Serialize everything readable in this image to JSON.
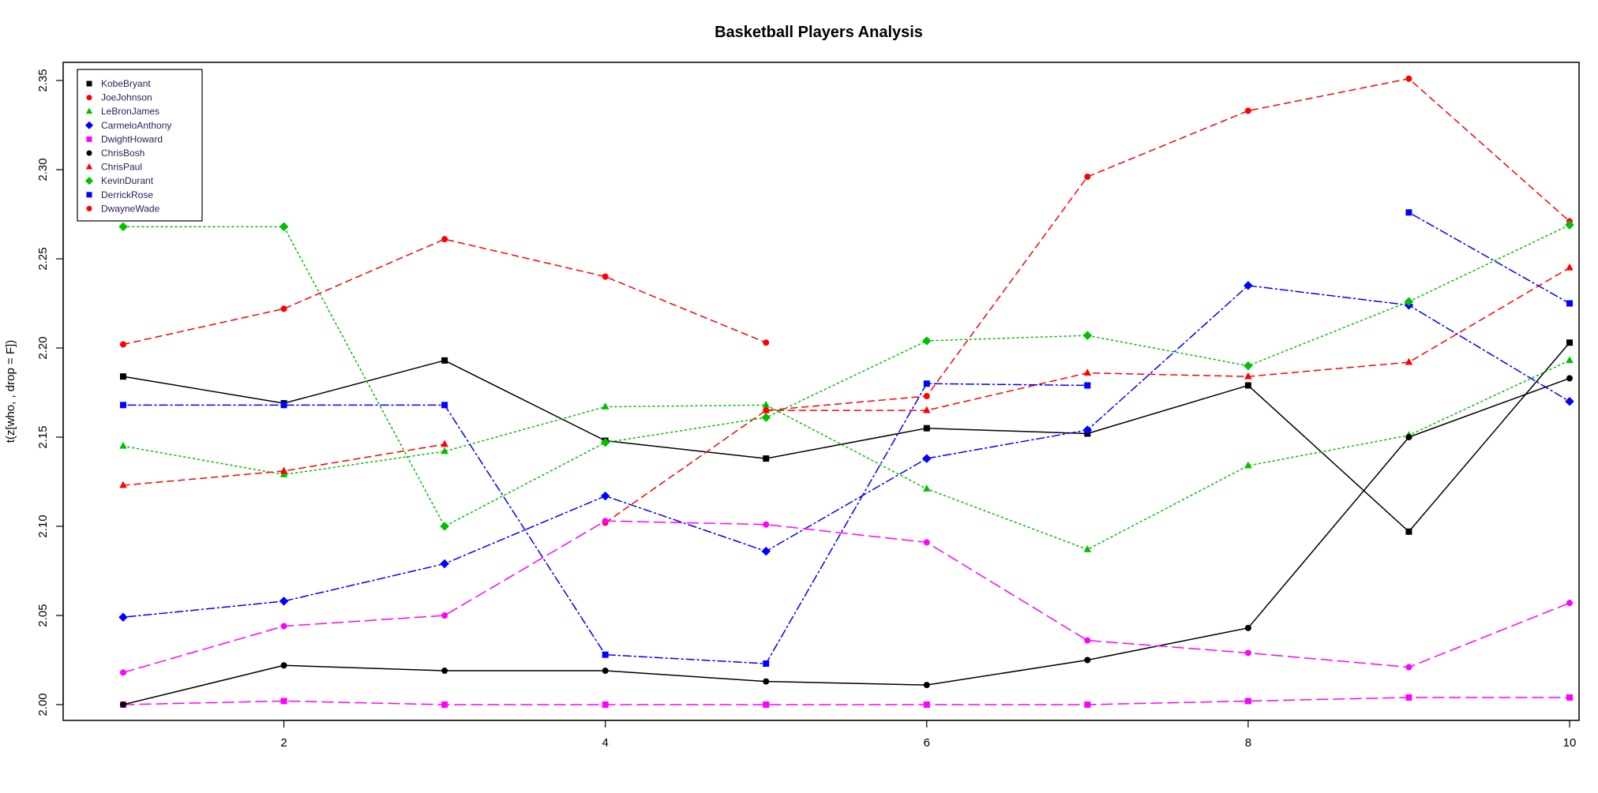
{
  "chart_data": {
    "type": "line",
    "title": "Basketball Players Analysis",
    "xlabel": "",
    "ylabel": "t(z[who, , drop = F])",
    "xlim": [
      1,
      10
    ],
    "ylim": [
      2.0,
      2.35
    ],
    "x_ticks": [
      2,
      4,
      6,
      8,
      10
    ],
    "y_ticks": [
      2.0,
      2.05,
      2.1,
      2.15,
      2.2,
      2.25,
      2.3,
      2.35
    ],
    "x_tick_labels": [
      "2",
      "4",
      "6",
      "8",
      "10"
    ],
    "y_tick_labels": [
      "2.00",
      "2.05",
      "2.10",
      "2.15",
      "2.20",
      "2.25",
      "2.30",
      "2.35"
    ],
    "grid": false,
    "legend_position": "top-left",
    "x": [
      1,
      2,
      3,
      4,
      5,
      6,
      7,
      8,
      9,
      10
    ],
    "series": [
      {
        "name": "KobeBryant",
        "color": "#000000",
        "line_style": "solid",
        "marker": "square",
        "values": [
          2.184,
          2.169,
          2.193,
          2.148,
          2.138,
          2.155,
          2.152,
          2.179,
          2.097,
          2.203
        ]
      },
      {
        "name": "JoeJohnson",
        "color": "#ff0000",
        "line_style": "dashed",
        "marker": "circle",
        "values": [
          null,
          null,
          null,
          2.102,
          2.165,
          2.173,
          2.296,
          2.333,
          2.351,
          2.271
        ]
      },
      {
        "name": "LeBronJames",
        "color": "#00c000",
        "line_style": "dotted",
        "marker": "triangle",
        "values": [
          2.145,
          2.129,
          2.142,
          2.167,
          2.168,
          2.121,
          2.087,
          2.134,
          2.151,
          2.193
        ]
      },
      {
        "name": "CarmeloAnthony",
        "color": "#0000ff",
        "line_style": "dotdash",
        "marker": "diamond",
        "values": [
          2.049,
          2.058,
          2.079,
          2.117,
          2.086,
          2.138,
          2.154,
          2.235,
          2.224,
          2.17
        ]
      },
      {
        "name": "DwightHoward",
        "color": "#ff00ff",
        "line_style": "longdash",
        "marker": "square",
        "values": [
          2.0,
          2.002,
          2.0,
          2.0,
          2.0,
          2.0,
          2.0,
          2.002,
          2.004,
          2.004
        ]
      },
      {
        "name": "ChrisBosh",
        "color": "#000000",
        "line_style": "solid",
        "marker": "circle",
        "values": [
          2.0,
          2.022,
          2.019,
          2.019,
          2.013,
          2.011,
          2.025,
          2.043,
          2.15,
          2.183
        ]
      },
      {
        "name": "ChrisPaul",
        "color": "#ff0000",
        "line_style": "dashed",
        "marker": "triangle",
        "values": [
          2.123,
          2.131,
          2.146,
          null,
          2.165,
          2.165,
          2.186,
          2.184,
          2.192,
          2.245
        ]
      },
      {
        "name": "KevinDurant",
        "color": "#00c000",
        "line_style": "dotted",
        "marker": "diamond",
        "values": [
          2.268,
          2.268,
          2.1,
          2.147,
          2.161,
          2.204,
          2.207,
          2.19,
          2.226,
          2.269
        ]
      },
      {
        "name": "DerrickRose",
        "color": "#0000ff",
        "line_style": "dotdash",
        "marker": "square",
        "values": [
          2.168,
          2.168,
          2.168,
          2.028,
          2.023,
          2.18,
          2.179,
          null,
          2.276,
          2.225
        ]
      },
      {
        "name": "DwayneWade",
        "color": "#ff0000",
        "line_style": "dashed",
        "marker": "circle",
        "values": [
          2.202,
          2.222,
          2.261,
          2.24,
          2.203,
          null,
          null,
          null,
          null,
          null
        ]
      },
      {
        "name": "",
        "color": "#ff00ff",
        "line_style": "longdash",
        "marker": "circle",
        "values": [
          2.018,
          2.044,
          2.05,
          2.103,
          2.101,
          2.091,
          2.036,
          2.029,
          2.021,
          2.057
        ]
      }
    ]
  }
}
